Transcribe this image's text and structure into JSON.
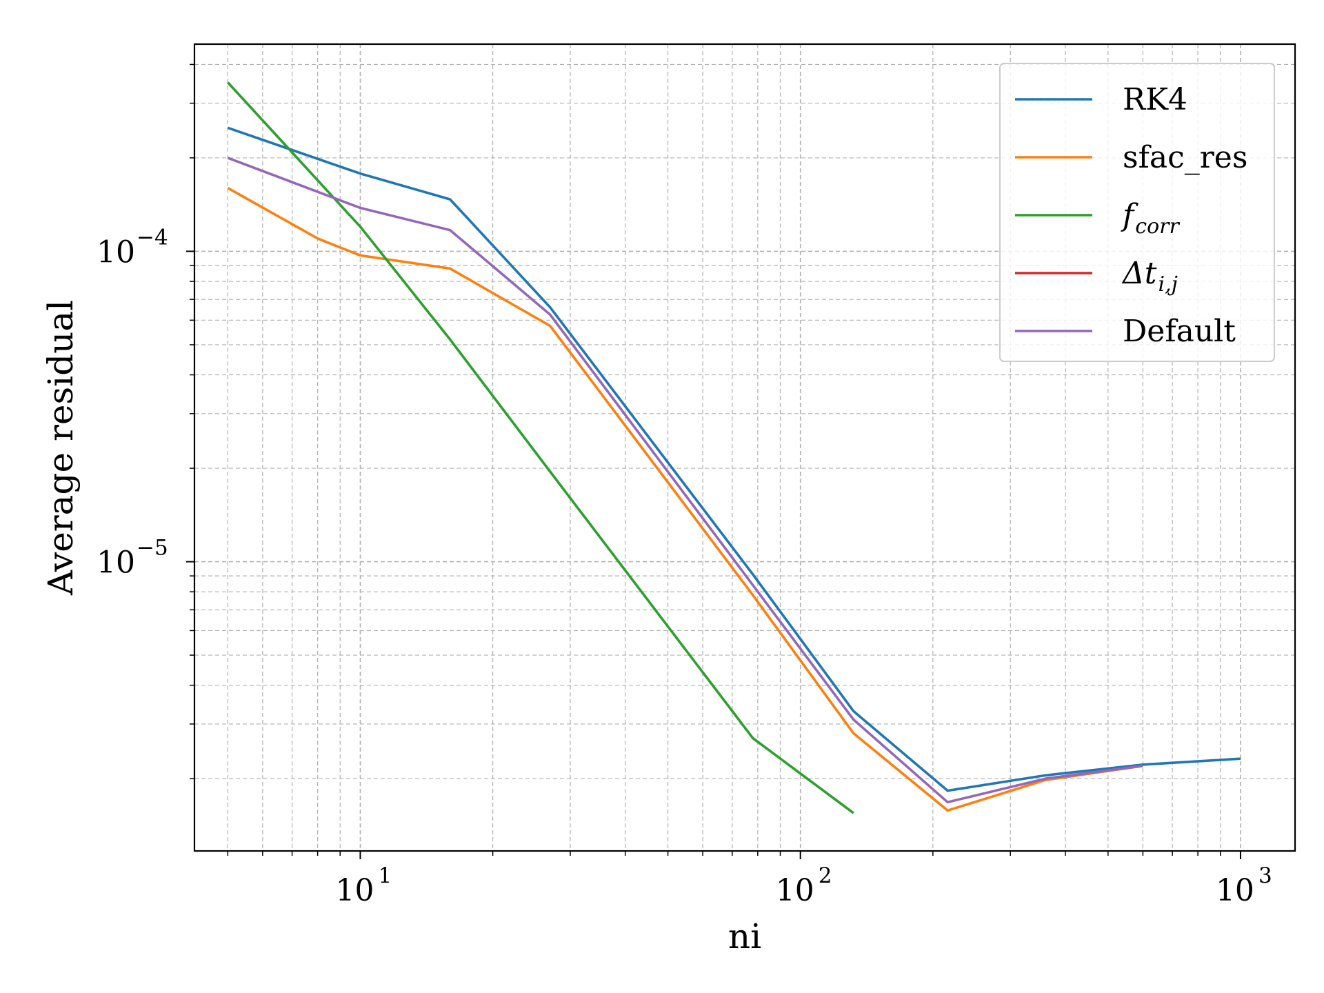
{
  "chart_data": {
    "type": "line",
    "title": "",
    "xlabel": "ni",
    "ylabel": "Average residual",
    "xscale": "log",
    "yscale": "log",
    "xlim": [
      4.2,
      1330
    ],
    "ylim": [
      1.17e-06,
      0.000465
    ],
    "grid": "major and minor, dashed",
    "legend_position": "top-right",
    "x_ticks": [
      {
        "base": "10",
        "exp": "1",
        "value": 10
      },
      {
        "base": "10",
        "exp": "2",
        "value": 100
      },
      {
        "base": "10",
        "exp": "3",
        "value": 1000
      }
    ],
    "y_ticks": [
      {
        "base": "10",
        "exp": "−5",
        "value": 1e-05
      },
      {
        "base": "10",
        "exp": "−4",
        "value": 0.0001
      }
    ],
    "series": [
      {
        "name": "RK4",
        "color": "#1f77b4",
        "points": [
          [
            5,
            0.00025
          ],
          [
            10,
            0.000178
          ],
          [
            16,
            0.000147
          ],
          [
            27,
            6.6e-05
          ],
          [
            78,
            9.1e-06
          ],
          [
            132,
            3.3e-06
          ],
          [
            216,
            1.83e-06
          ],
          [
            360,
            2.05e-06
          ],
          [
            600,
            2.22e-06
          ],
          [
            1000,
            2.32e-06
          ]
        ]
      },
      {
        "name": "sfac_res",
        "color": "#ff7f0e",
        "points": [
          [
            5,
            0.00016
          ],
          [
            8,
            0.00011
          ],
          [
            10,
            9.7e-05
          ],
          [
            16,
            8.8e-05
          ],
          [
            27,
            5.75e-05
          ],
          [
            78,
            7.8e-06
          ],
          [
            132,
            2.8e-06
          ],
          [
            216,
            1.58e-06
          ],
          [
            360,
            1.98e-06
          ],
          [
            600,
            2.2e-06
          ]
        ]
      },
      {
        "name_base": "f",
        "name_sub": "corr",
        "color": "#2ca02c",
        "points": [
          [
            5,
            0.00035
          ],
          [
            10,
            0.00012
          ],
          [
            16,
            5.2e-05
          ],
          [
            27,
            1.95e-05
          ],
          [
            78,
            2.7e-06
          ],
          [
            132,
            1.55e-06
          ]
        ]
      },
      {
        "name_base": "Δt",
        "name_sub": "i,j",
        "color": "#d62728",
        "points": []
      },
      {
        "name": "Default",
        "color": "#9467bd",
        "points": [
          [
            5,
            0.0002
          ],
          [
            10,
            0.000138
          ],
          [
            16,
            0.000117
          ],
          [
            27,
            6.25e-05
          ],
          [
            78,
            8.4e-06
          ],
          [
            132,
            3.1e-06
          ],
          [
            216,
            1.68e-06
          ],
          [
            360,
            2e-06
          ],
          [
            600,
            2.2e-06
          ]
        ]
      }
    ]
  }
}
